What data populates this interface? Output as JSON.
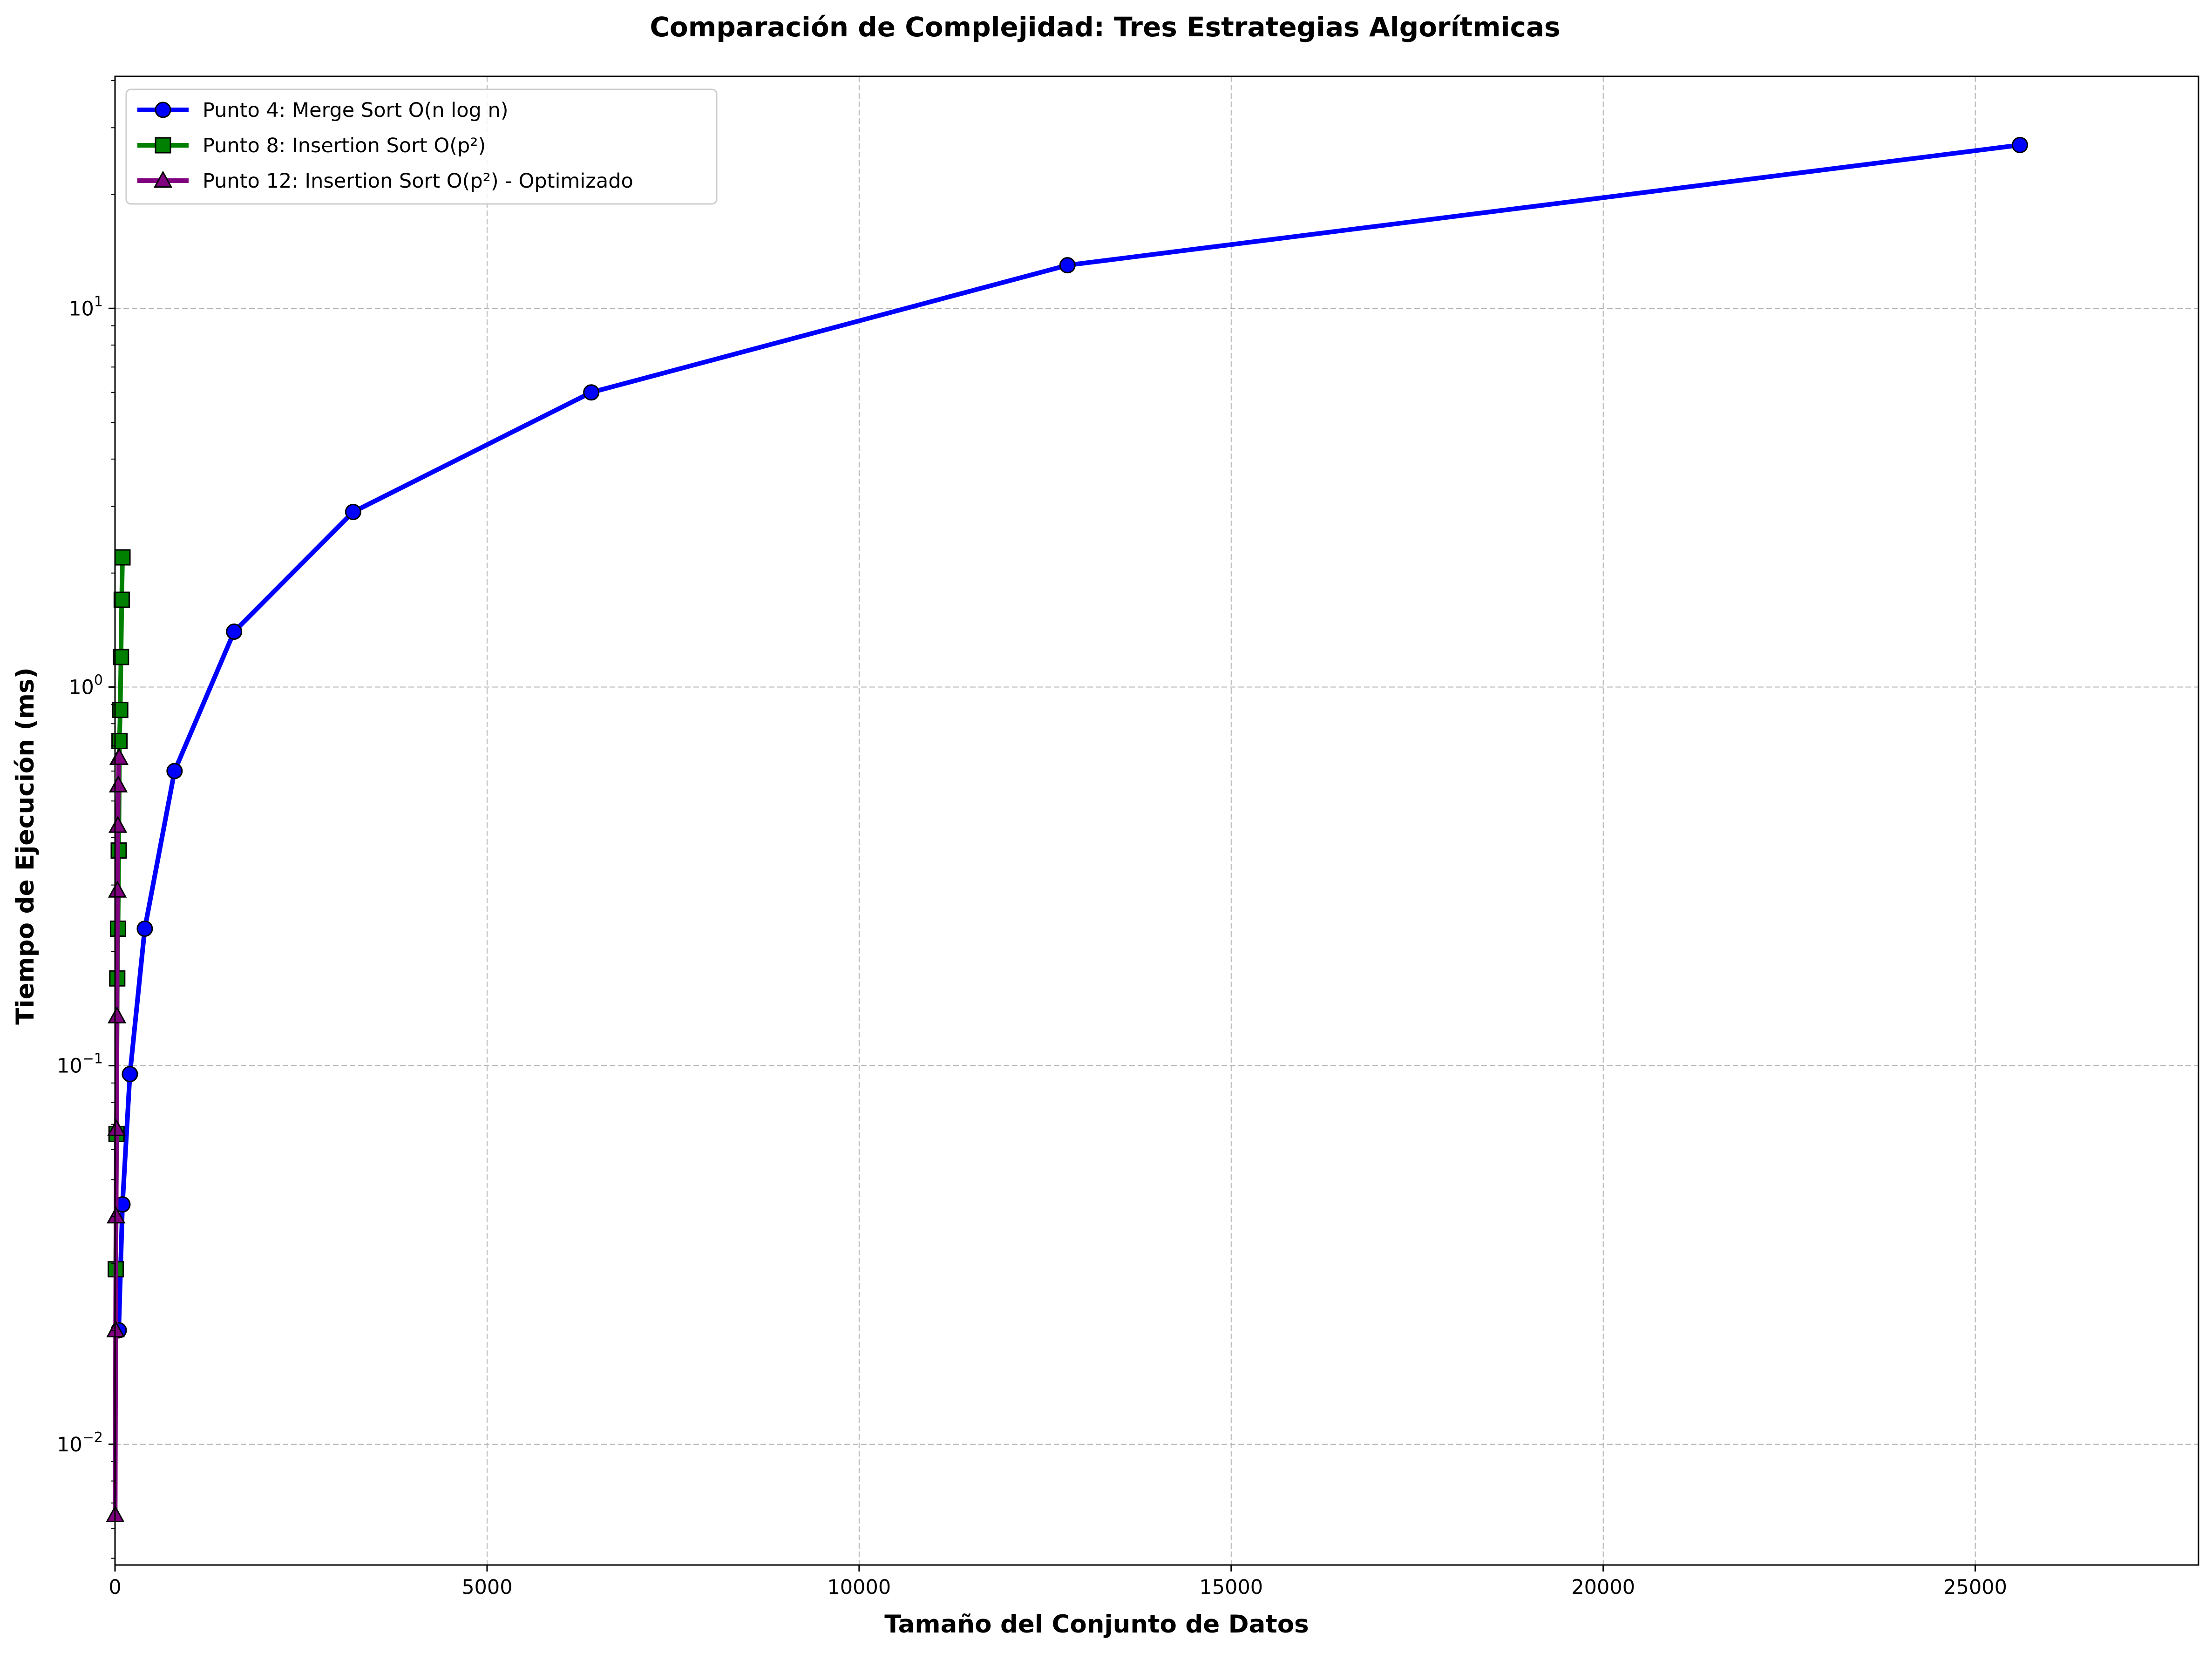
{
  "chart_data": {
    "type": "line",
    "title": "Comparación de Complejidad: Tres Estrategias Algorítmicas",
    "xlabel": "Tamaño del Conjunto de Datos",
    "ylabel": "Tiempo de Ejecución (ms)",
    "xlim": [
      0,
      28000
    ],
    "ylim": [
      0.0048,
      41
    ],
    "yscale": "log",
    "grid": true,
    "legend_position": "top-left",
    "x_ticks": [
      {
        "value": 0,
        "label": "0"
      },
      {
        "value": 5000,
        "label": "5000"
      },
      {
        "value": 10000,
        "label": "10000"
      },
      {
        "value": 15000,
        "label": "15000"
      },
      {
        "value": 20000,
        "label": "20000"
      },
      {
        "value": 25000,
        "label": "25000"
      }
    ],
    "y_ticks": [
      {
        "value": 0.01,
        "base": "10",
        "exp": "−2"
      },
      {
        "value": 0.1,
        "base": "10",
        "exp": "−1"
      },
      {
        "value": 1,
        "base": "10",
        "exp": "0"
      },
      {
        "value": 10,
        "base": "10",
        "exp": "1"
      }
    ],
    "series": [
      {
        "name": "Punto 4: Merge Sort O(n log n)",
        "color": "#0000ff",
        "marker": "circle",
        "x": [
          50,
          100,
          200,
          400,
          800,
          1600,
          3200,
          6400,
          12800,
          25600
        ],
        "y": [
          0.02,
          0.043,
          0.095,
          0.23,
          0.6,
          1.4,
          2.9,
          6.0,
          13.0,
          27.0
        ]
      },
      {
        "name": "Punto 8: Insertion Sort O(p²)",
        "color": "#008000",
        "marker": "square",
        "x": [
          10,
          20,
          30,
          40,
          50,
          60,
          70,
          80,
          90,
          100
        ],
        "y": [
          0.029,
          0.066,
          0.17,
          0.23,
          0.37,
          0.72,
          0.87,
          1.2,
          1.7,
          2.2
        ]
      },
      {
        "name": "Punto 12: Insertion Sort O(p²) - Optimizado",
        "color": "#800080",
        "marker": "triangle",
        "x": [
          2,
          8,
          14,
          20,
          26,
          32,
          38,
          44,
          50,
          56
        ],
        "y": [
          0.0065,
          0.02,
          0.04,
          0.068,
          0.135,
          0.29,
          0.43,
          0.55,
          0.65,
          0.65
        ]
      }
    ]
  }
}
